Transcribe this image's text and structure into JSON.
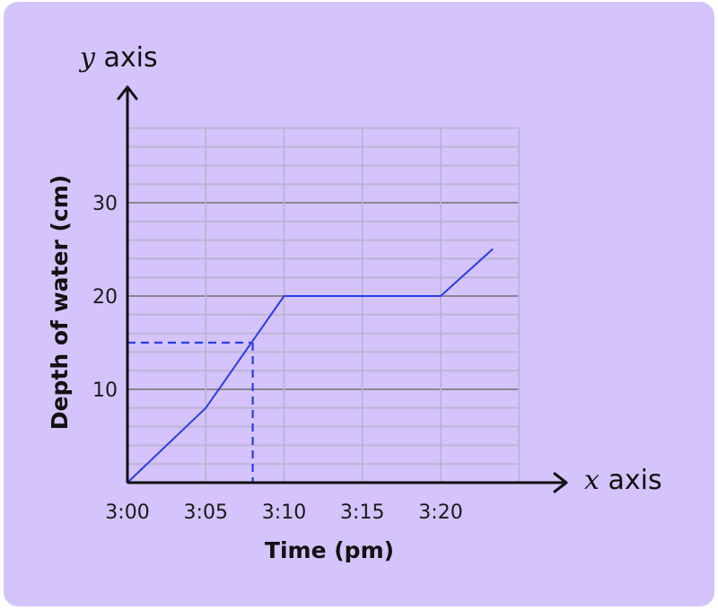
{
  "chart_data": {
    "type": "line",
    "x_unit": "minutes",
    "x_tick_labels": [
      "3:00",
      "3:05",
      "3:10",
      "3:15",
      "3:20"
    ],
    "x_ticks": [
      0,
      5,
      10,
      15,
      20
    ],
    "y_ticks": [
      10,
      20,
      30
    ],
    "xlim": [
      0,
      25
    ],
    "ylim": [
      0,
      38
    ],
    "xlabel": "Time (pm)",
    "ylabel": "Depth of water (cm)",
    "x_axis_name_var": "x",
    "x_axis_name_word": "axis",
    "y_axis_name_var": "y",
    "y_axis_name_word": "axis",
    "grid": true,
    "series": [
      {
        "x": [
          0,
          5,
          10,
          20,
          23.3
        ],
        "y": [
          0,
          8,
          20,
          20,
          25
        ],
        "color": "#2a3de8"
      }
    ],
    "guide": {
      "x": 8,
      "y": 15,
      "style": "dashed",
      "color": "#2a3de8"
    }
  },
  "colors": {
    "background": "#d4c4fb",
    "grid_minor": "#bdb3d4",
    "grid_major": "#8a8493",
    "axis": "#111111",
    "line": "#2a3de8"
  }
}
